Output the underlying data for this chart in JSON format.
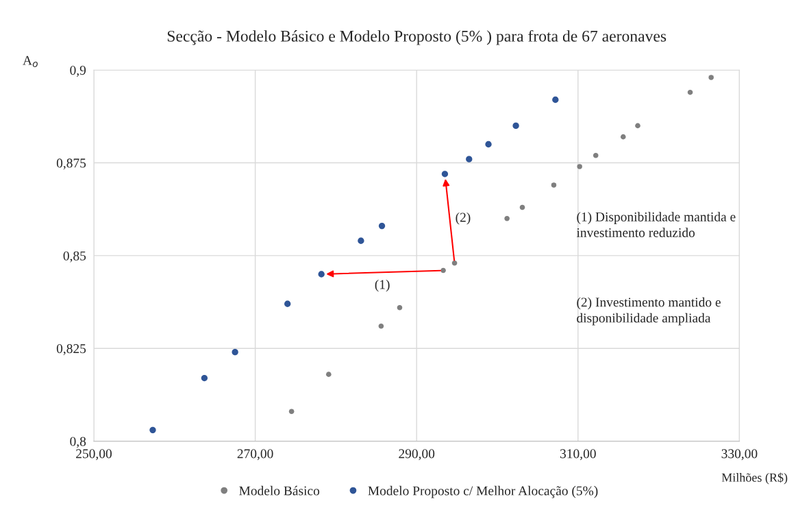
{
  "chart_data": {
    "type": "scatter",
    "title": "Secção - Modelo Básico e Modelo Proposto (5% ) para frota de 67 aeronaves",
    "xlabel": "Milhões (R$)",
    "ylabel": "A$_{o}$",
    "xlim": [
      250,
      330
    ],
    "xticks": [
      {
        "value": 250,
        "label": "250,00"
      },
      {
        "value": 270,
        "label": "270,00"
      },
      {
        "value": 290,
        "label": "290,00"
      },
      {
        "value": 310,
        "label": "310,00"
      },
      {
        "value": 330,
        "label": "330,00"
      }
    ],
    "ylim": [
      0.8,
      0.9
    ],
    "yticks": [
      {
        "value": 0.8,
        "label": "0,8"
      },
      {
        "value": 0.825,
        "label": "0,825"
      },
      {
        "value": 0.85,
        "label": "0,85"
      },
      {
        "value": 0.875,
        "label": "0,875"
      },
      {
        "value": 0.9,
        "label": "0,9"
      }
    ],
    "grid": true,
    "legend": "bottom",
    "marker": "circle",
    "series": [
      {
        "name": "Modelo Básico",
        "color": "#7f7f7f",
        "x": [
          274.5,
          279.1,
          285.6,
          287.9,
          293.3,
          294.7,
          301.2,
          303.1,
          307.0,
          310.2,
          312.2,
          315.6,
          317.4,
          323.9,
          326.5
        ],
        "values": [
          0.808,
          0.818,
          0.831,
          0.836,
          0.846,
          0.848,
          0.86,
          0.863,
          0.869,
          0.874,
          0.877,
          0.882,
          0.885,
          0.894,
          0.898
        ]
      },
      {
        "name": "Modelo Proposto c/ Melhor Alocação (5%)",
        "color": "#2f5597",
        "x": [
          257.3,
          263.7,
          267.5,
          274.0,
          278.2,
          283.1,
          285.7,
          293.5,
          296.5,
          298.9,
          302.3,
          307.2
        ],
        "values": [
          0.803,
          0.817,
          0.824,
          0.837,
          0.845,
          0.854,
          0.858,
          0.872,
          0.876,
          0.88,
          0.885,
          0.892
        ]
      }
    ],
    "annotations": [
      "(1)",
      "(2)",
      "(1) Disponibilidade mantida e\ninvestimento reduzido",
      "(2) Investimento mantido e\ndisponibilidade ampliada"
    ]
  }
}
